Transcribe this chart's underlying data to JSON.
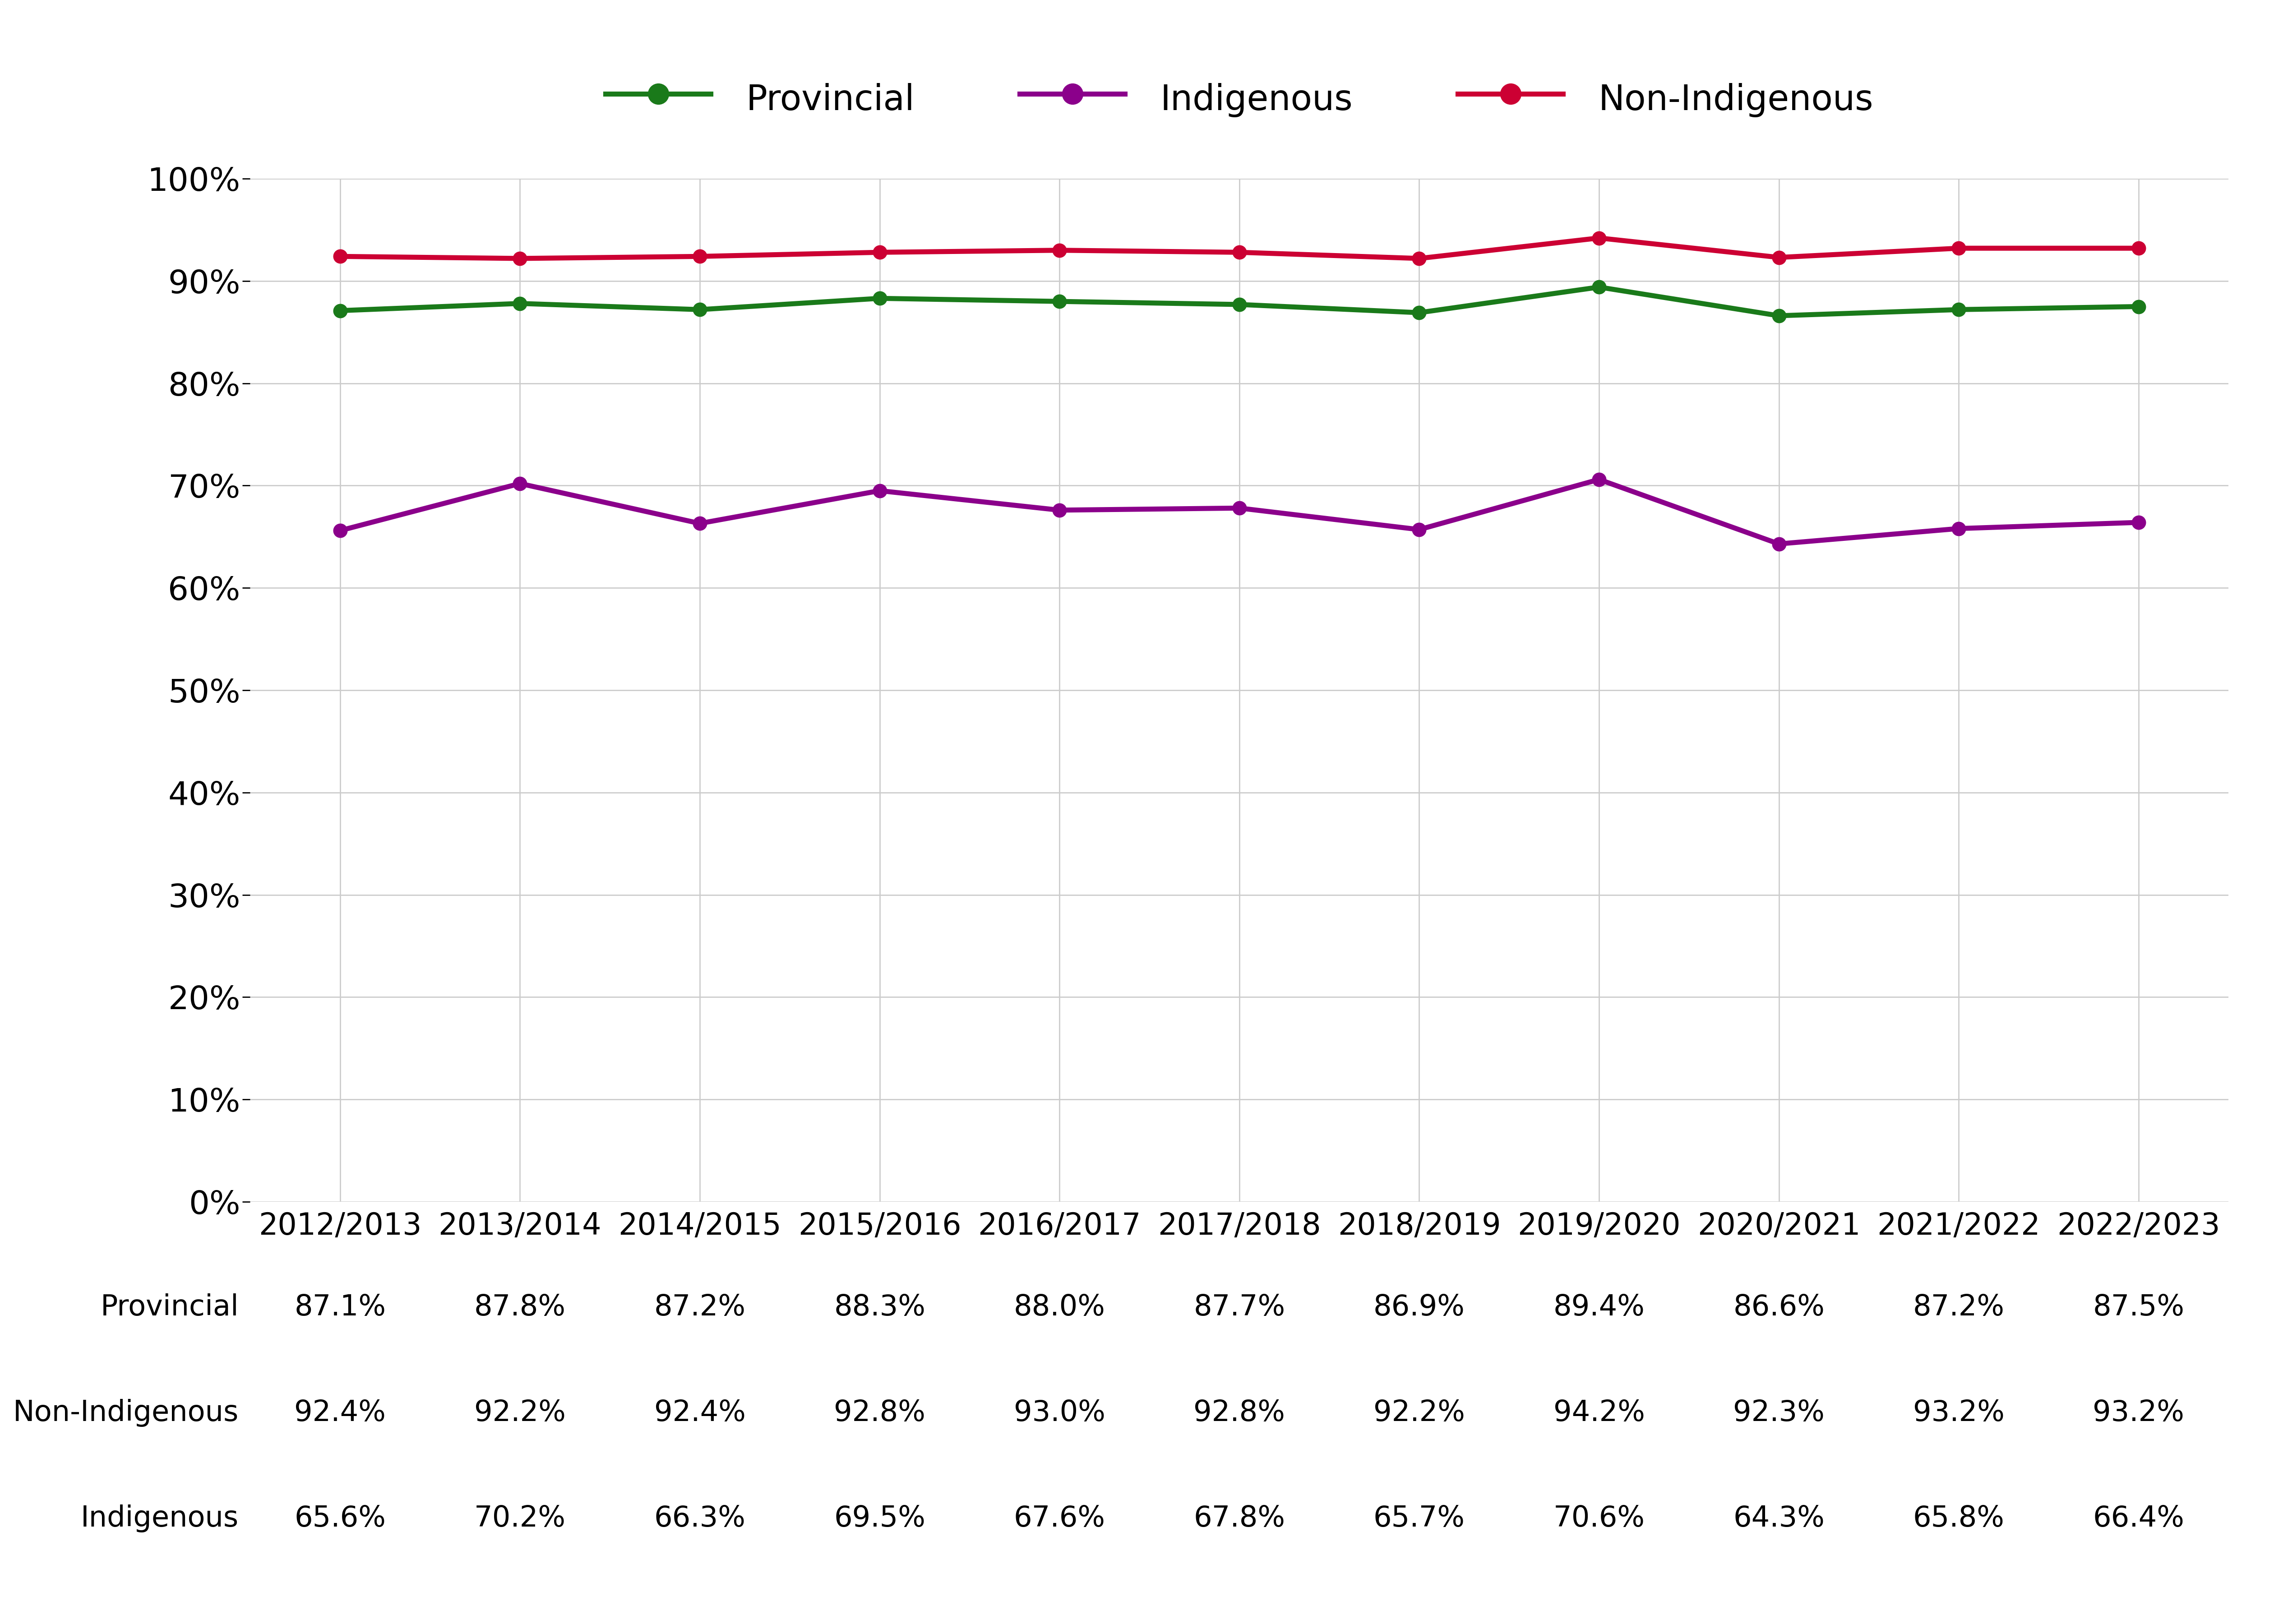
{
  "years": [
    "2012/2013",
    "2013/2014",
    "2014/2015",
    "2015/2016",
    "2016/2017",
    "2017/2018",
    "2018/2019",
    "2019/2020",
    "2020/2021",
    "2021/2022",
    "2022/2023"
  ],
  "provincial": [
    87.1,
    87.8,
    87.2,
    88.3,
    88.0,
    87.7,
    86.9,
    89.4,
    86.6,
    87.2,
    87.5
  ],
  "non_indigenous": [
    92.4,
    92.2,
    92.4,
    92.8,
    93.0,
    92.8,
    92.2,
    94.2,
    92.3,
    93.2,
    93.2
  ],
  "indigenous": [
    65.6,
    70.2,
    66.3,
    69.5,
    67.6,
    67.8,
    65.7,
    70.6,
    64.3,
    65.8,
    66.4
  ],
  "provincial_color": "#1a7a1a",
  "non_indigenous_color": "#cc0033",
  "indigenous_color": "#8b008b",
  "background_color": "#ffffff",
  "grid_color": "#cccccc",
  "ylim": [
    0,
    100
  ],
  "yticks": [
    0,
    10,
    20,
    30,
    40,
    50,
    60,
    70,
    80,
    90,
    100
  ],
  "line_width": 8,
  "marker_size": 22,
  "marker_style": "o",
  "table_row_labels": [
    "Provincial",
    "Non-Indigenous",
    "Indigenous"
  ],
  "table_provincial": [
    "87.1%",
    "87.8%",
    "87.2%",
    "88.3%",
    "88.0%",
    "87.7%",
    "86.9%",
    "89.4%",
    "86.6%",
    "87.2%",
    "87.5%"
  ],
  "table_non_indigenous": [
    "92.4%",
    "92.2%",
    "92.4%",
    "92.8%",
    "93.0%",
    "92.8%",
    "92.2%",
    "94.2%",
    "92.3%",
    "93.2%",
    "93.2%"
  ],
  "table_indigenous": [
    "65.6%",
    "70.2%",
    "66.3%",
    "69.5%",
    "67.6%",
    "67.8%",
    "65.7%",
    "70.6%",
    "64.3%",
    "65.8%",
    "66.4%"
  ],
  "legend_fontsize": 56,
  "tick_fontsize": 52,
  "xtick_fontsize": 48,
  "table_fontsize": 46,
  "table_label_fontsize": 46
}
